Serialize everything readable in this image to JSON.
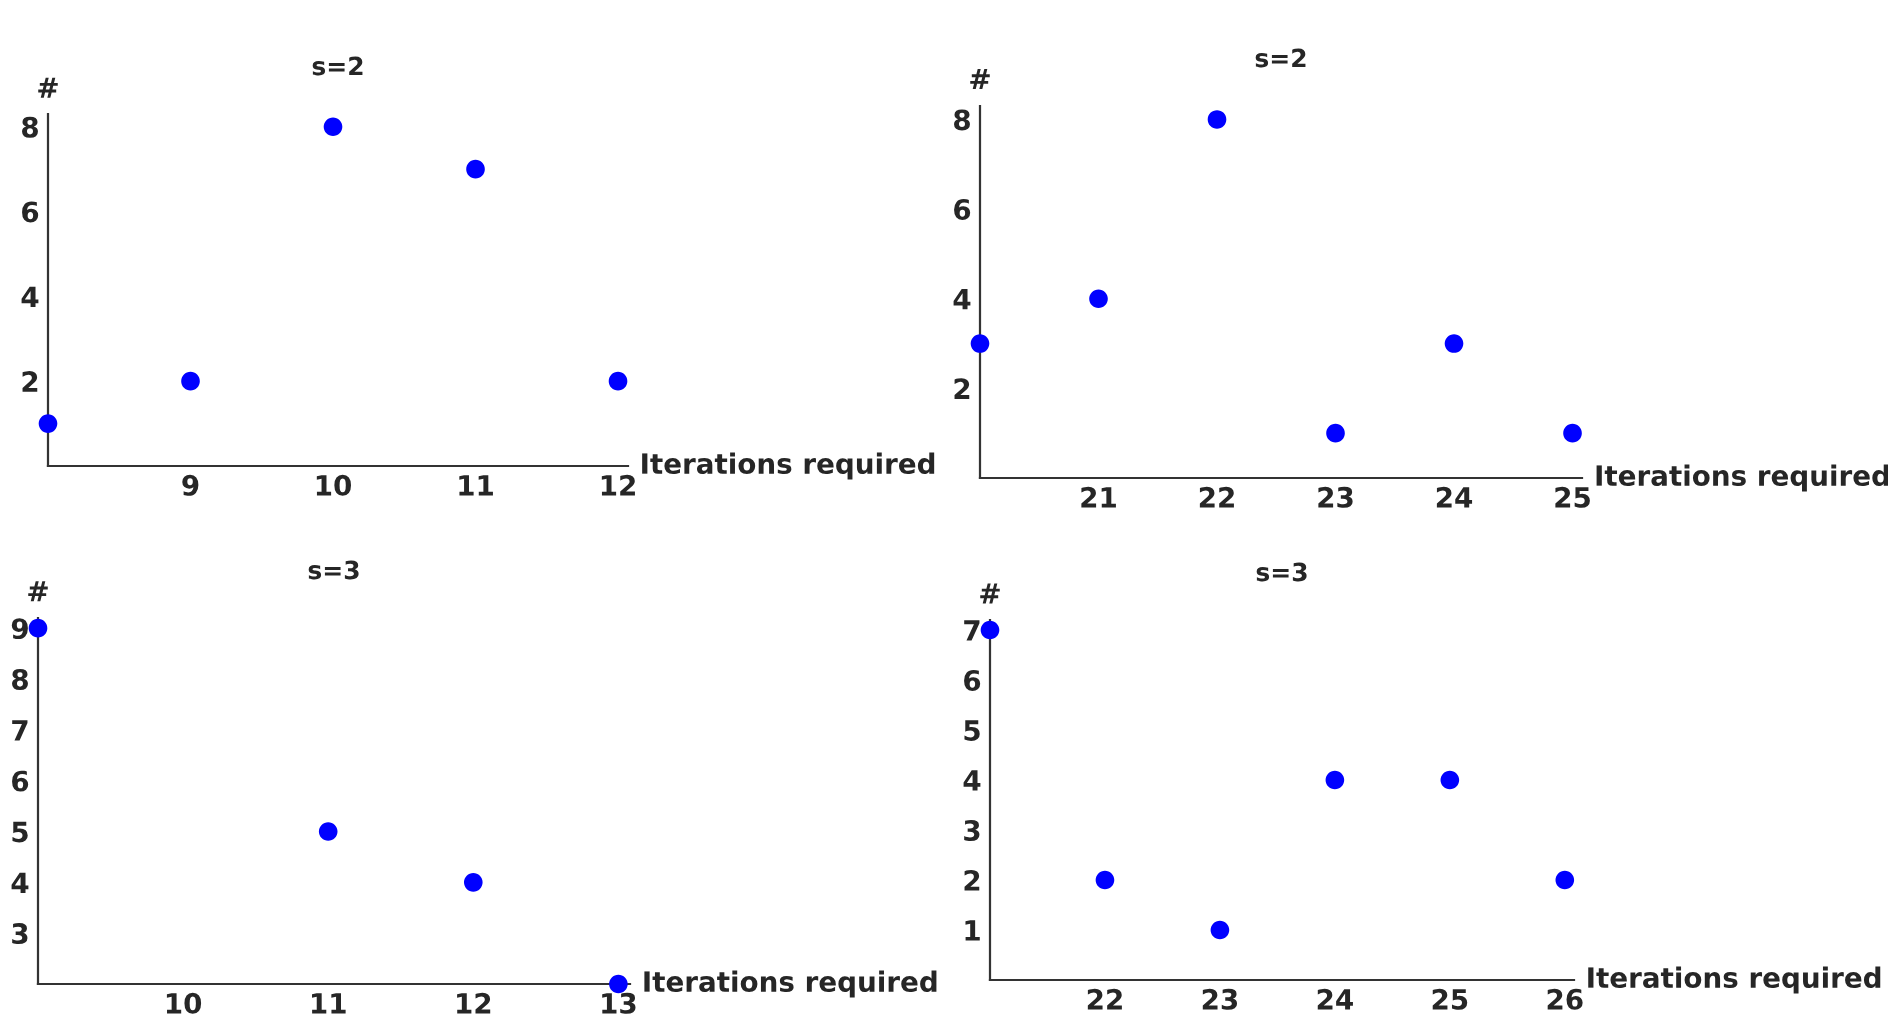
{
  "chart_data": [
    {
      "type": "scatter",
      "title": "s=2",
      "xlabel": "Iterations required",
      "ylabel": "#",
      "x": [
        8,
        9,
        10,
        11,
        12
      ],
      "series": [
        {
          "color": "#0000ff",
          "values": [
            1,
            2,
            8,
            7,
            2
          ]
        }
      ],
      "marker": "circle",
      "xlim": [
        8,
        12.07
      ],
      "ylim": [
        0,
        8.3
      ],
      "xticks": [
        9,
        10,
        11,
        12
      ],
      "yticks": [
        2,
        4,
        6,
        8
      ]
    },
    {
      "type": "scatter",
      "title": "s=2",
      "xlabel": "Iterations required",
      "ylabel": "#",
      "x": [
        20,
        21,
        22,
        23,
        24,
        25
      ],
      "series": [
        {
          "color": "#0000ff",
          "values": [
            3,
            4,
            8,
            1,
            3,
            1
          ]
        }
      ],
      "marker": "circle",
      "xlim": [
        20,
        25.08
      ],
      "ylim": [
        0,
        8.3
      ],
      "xticks": [
        21,
        22,
        23,
        24,
        25
      ],
      "yticks": [
        2,
        4,
        6,
        8
      ]
    },
    {
      "type": "scatter",
      "title": "s=3",
      "xlabel": "Iterations required",
      "ylabel": "#",
      "x": [
        9,
        11,
        12,
        13
      ],
      "series": [
        {
          "color": "#0000ff",
          "values": [
            9,
            5,
            4,
            2
          ]
        }
      ],
      "marker": "circle",
      "xlim": [
        9,
        13.08
      ],
      "ylim": [
        2,
        9.2
      ],
      "xticks": [
        10,
        11,
        12,
        13
      ],
      "yticks": [
        3,
        4,
        5,
        6,
        7,
        8,
        9
      ]
    },
    {
      "type": "scatter",
      "title": "s=3",
      "xlabel": "Iterations required",
      "ylabel": "#",
      "x": [
        21,
        22,
        23,
        24,
        25,
        26
      ],
      "series": [
        {
          "color": "#0000ff",
          "values": [
            7,
            2,
            1,
            4,
            4,
            2
          ]
        }
      ],
      "marker": "circle",
      "xlim": [
        21,
        26.08
      ],
      "ylim": [
        0,
        7.2
      ],
      "xticks": [
        22,
        23,
        24,
        25,
        26
      ],
      "yticks": [
        1,
        2,
        3,
        4,
        5,
        6,
        7
      ]
    }
  ]
}
